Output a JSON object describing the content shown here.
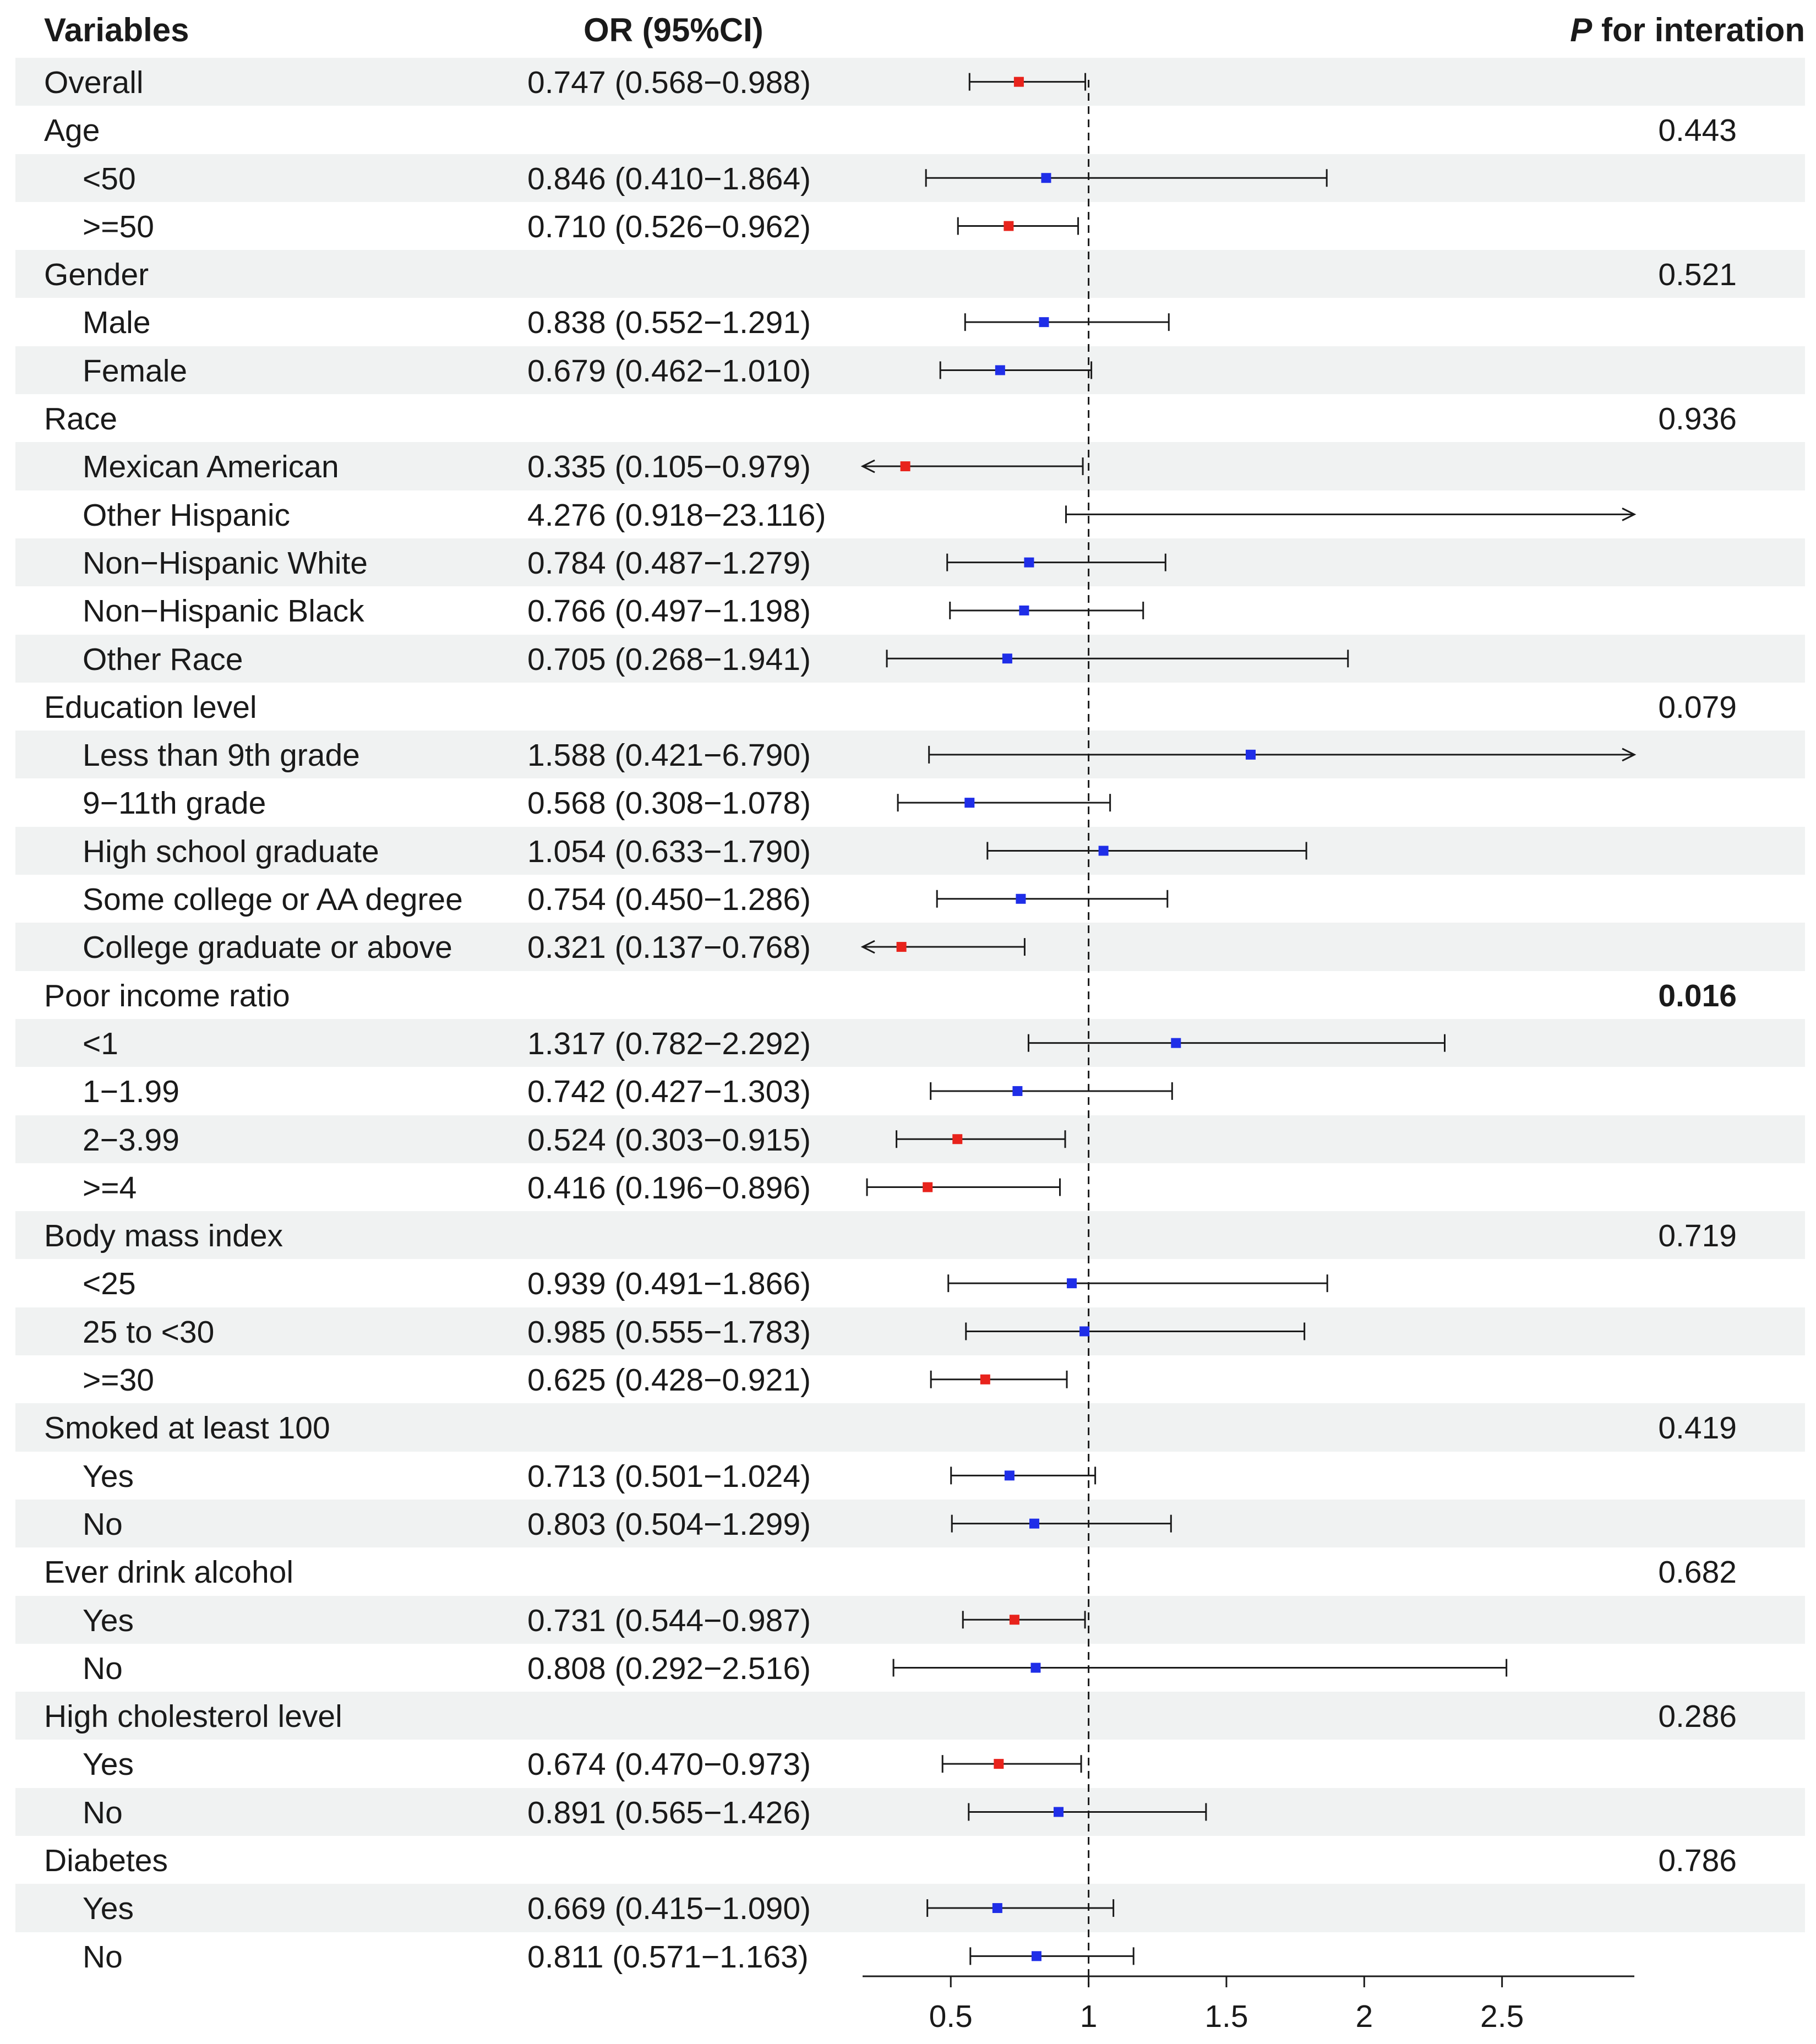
{
  "header": {
    "variables": "Variables",
    "or": "OR (95%CI)",
    "p_prefix": "P",
    "p_suffix": " for interation"
  },
  "colors": {
    "significant": "#e8231c",
    "nonsignificant": "#1f2ee8",
    "band": "#f0f2f2",
    "line": "#1a1a1a"
  },
  "rows": [
    {
      "label": "Overall",
      "indent": false,
      "or_text": "0.747 (0.568−0.988)",
      "or": 0.747,
      "lower": 0.568,
      "upper": 0.988,
      "sig": true,
      "p": ""
    },
    {
      "label": "Age",
      "indent": false,
      "or_text": "",
      "or": null,
      "lower": null,
      "upper": null,
      "sig": false,
      "p": "0.443"
    },
    {
      "label": "<50",
      "indent": true,
      "or_text": "0.846 (0.410−1.864)",
      "or": 0.846,
      "lower": 0.41,
      "upper": 1.864,
      "sig": false,
      "p": ""
    },
    {
      "label": ">=50",
      "indent": true,
      "or_text": "0.710 (0.526−0.962)",
      "or": 0.71,
      "lower": 0.526,
      "upper": 0.962,
      "sig": true,
      "p": ""
    },
    {
      "label": "Gender",
      "indent": false,
      "or_text": "",
      "or": null,
      "lower": null,
      "upper": null,
      "sig": false,
      "p": "0.521"
    },
    {
      "label": "Male",
      "indent": true,
      "or_text": "0.838 (0.552−1.291)",
      "or": 0.838,
      "lower": 0.552,
      "upper": 1.291,
      "sig": false,
      "p": ""
    },
    {
      "label": "Female",
      "indent": true,
      "or_text": "0.679 (0.462−1.010)",
      "or": 0.679,
      "lower": 0.462,
      "upper": 1.01,
      "sig": false,
      "p": ""
    },
    {
      "label": "Race",
      "indent": false,
      "or_text": "",
      "or": null,
      "lower": null,
      "upper": null,
      "sig": false,
      "p": "0.936"
    },
    {
      "label": "Mexican American",
      "indent": true,
      "or_text": "0.335 (0.105−0.979)",
      "or": 0.335,
      "lower": 0.105,
      "upper": 0.979,
      "sig": true,
      "p": ""
    },
    {
      "label": "Other Hispanic",
      "indent": true,
      "or_text": "4.276 (0.918−23.116)",
      "or": 4.276,
      "lower": 0.918,
      "upper": 23.116,
      "sig": false,
      "p": ""
    },
    {
      "label": "Non−Hispanic White",
      "indent": true,
      "or_text": "0.784 (0.487−1.279)",
      "or": 0.784,
      "lower": 0.487,
      "upper": 1.279,
      "sig": false,
      "p": ""
    },
    {
      "label": "Non−Hispanic Black",
      "indent": true,
      "or_text": "0.766 (0.497−1.198)",
      "or": 0.766,
      "lower": 0.497,
      "upper": 1.198,
      "sig": false,
      "p": ""
    },
    {
      "label": "Other Race",
      "indent": true,
      "or_text": "0.705 (0.268−1.941)",
      "or": 0.705,
      "lower": 0.268,
      "upper": 1.941,
      "sig": false,
      "p": ""
    },
    {
      "label": "Education level",
      "indent": false,
      "or_text": "",
      "or": null,
      "lower": null,
      "upper": null,
      "sig": false,
      "p": "0.079"
    },
    {
      "label": "Less than 9th grade",
      "indent": true,
      "or_text": "1.588 (0.421−6.790)",
      "or": 1.588,
      "lower": 0.421,
      "upper": 6.79,
      "sig": false,
      "p": ""
    },
    {
      "label": "9−11th grade",
      "indent": true,
      "or_text": "0.568 (0.308−1.078)",
      "or": 0.568,
      "lower": 0.308,
      "upper": 1.078,
      "sig": false,
      "p": ""
    },
    {
      "label": "High school graduate",
      "indent": true,
      "or_text": "1.054 (0.633−1.790)",
      "or": 1.054,
      "lower": 0.633,
      "upper": 1.79,
      "sig": false,
      "p": ""
    },
    {
      "label": "Some college or AA degree",
      "indent": true,
      "or_text": "0.754 (0.450−1.286)",
      "or": 0.754,
      "lower": 0.45,
      "upper": 1.286,
      "sig": false,
      "p": ""
    },
    {
      "label": "College graduate or above",
      "indent": true,
      "or_text": "0.321 (0.137−0.768)",
      "or": 0.321,
      "lower": 0.137,
      "upper": 0.768,
      "sig": true,
      "p": ""
    },
    {
      "label": "Poor income ratio",
      "indent": false,
      "or_text": "",
      "or": null,
      "lower": null,
      "upper": null,
      "sig": false,
      "p": "0.016",
      "p_bold": true
    },
    {
      "label": "<1",
      "indent": true,
      "or_text": "1.317 (0.782−2.292)",
      "or": 1.317,
      "lower": 0.782,
      "upper": 2.292,
      "sig": false,
      "p": ""
    },
    {
      "label": "1−1.99",
      "indent": true,
      "or_text": "0.742 (0.427−1.303)",
      "or": 0.742,
      "lower": 0.427,
      "upper": 1.303,
      "sig": false,
      "p": ""
    },
    {
      "label": "2−3.99",
      "indent": true,
      "or_text": "0.524 (0.303−0.915)",
      "or": 0.524,
      "lower": 0.303,
      "upper": 0.915,
      "sig": true,
      "p": ""
    },
    {
      "label": ">=4",
      "indent": true,
      "or_text": "0.416 (0.196−0.896)",
      "or": 0.416,
      "lower": 0.196,
      "upper": 0.896,
      "sig": true,
      "p": ""
    },
    {
      "label": "Body mass index",
      "indent": false,
      "or_text": "",
      "or": null,
      "lower": null,
      "upper": null,
      "sig": false,
      "p": "0.719"
    },
    {
      "label": "<25",
      "indent": true,
      "or_text": "0.939 (0.491−1.866)",
      "or": 0.939,
      "lower": 0.491,
      "upper": 1.866,
      "sig": false,
      "p": ""
    },
    {
      "label": "25 to <30",
      "indent": true,
      "or_text": "0.985 (0.555−1.783)",
      "or": 0.985,
      "lower": 0.555,
      "upper": 1.783,
      "sig": false,
      "p": ""
    },
    {
      "label": ">=30",
      "indent": true,
      "or_text": "0.625 (0.428−0.921)",
      "or": 0.625,
      "lower": 0.428,
      "upper": 0.921,
      "sig": true,
      "p": ""
    },
    {
      "label": "Smoked at least 100",
      "indent": false,
      "or_text": "",
      "or": null,
      "lower": null,
      "upper": null,
      "sig": false,
      "p": "0.419"
    },
    {
      "label": "Yes",
      "indent": true,
      "or_text": "0.713 (0.501−1.024)",
      "or": 0.713,
      "lower": 0.501,
      "upper": 1.024,
      "sig": false,
      "p": ""
    },
    {
      "label": "No",
      "indent": true,
      "or_text": "0.803 (0.504−1.299)",
      "or": 0.803,
      "lower": 0.504,
      "upper": 1.299,
      "sig": false,
      "p": ""
    },
    {
      "label": "Ever drink alcohol",
      "indent": false,
      "or_text": "",
      "or": null,
      "lower": null,
      "upper": null,
      "sig": false,
      "p": "0.682"
    },
    {
      "label": "Yes",
      "indent": true,
      "or_text": "0.731 (0.544−0.987)",
      "or": 0.731,
      "lower": 0.544,
      "upper": 0.987,
      "sig": true,
      "p": ""
    },
    {
      "label": "No",
      "indent": true,
      "or_text": "0.808 (0.292−2.516)",
      "or": 0.808,
      "lower": 0.292,
      "upper": 2.516,
      "sig": false,
      "p": ""
    },
    {
      "label": "High cholesterol level",
      "indent": false,
      "or_text": "",
      "or": null,
      "lower": null,
      "upper": null,
      "sig": false,
      "p": "0.286"
    },
    {
      "label": "Yes",
      "indent": true,
      "or_text": "0.674 (0.470−0.973)",
      "or": 0.674,
      "lower": 0.47,
      "upper": 0.973,
      "sig": true,
      "p": ""
    },
    {
      "label": "No",
      "indent": true,
      "or_text": "0.891 (0.565−1.426)",
      "or": 0.891,
      "lower": 0.565,
      "upper": 1.426,
      "sig": false,
      "p": ""
    },
    {
      "label": "Diabetes",
      "indent": false,
      "or_text": "",
      "or": null,
      "lower": null,
      "upper": null,
      "sig": false,
      "p": "0.786"
    },
    {
      "label": "Yes",
      "indent": true,
      "or_text": "0.669 (0.415−1.090)",
      "or": 0.669,
      "lower": 0.415,
      "upper": 1.09,
      "sig": false,
      "p": ""
    },
    {
      "label": "No",
      "indent": true,
      "or_text": "0.811 (0.571−1.163)",
      "or": 0.811,
      "lower": 0.571,
      "upper": 1.163,
      "sig": false,
      "p": ""
    }
  ],
  "chart_data": {
    "type": "forest",
    "title": "",
    "xlabel": "",
    "ylabel": "",
    "reference_line": 1,
    "xlim": [
      0.18,
      2.98
    ],
    "xticks": [
      0.5,
      1,
      1.5,
      2,
      2.5
    ],
    "xtick_labels": [
      "0.5",
      "1",
      "1.5",
      "2",
      "2.5"
    ],
    "legend": "none"
  }
}
